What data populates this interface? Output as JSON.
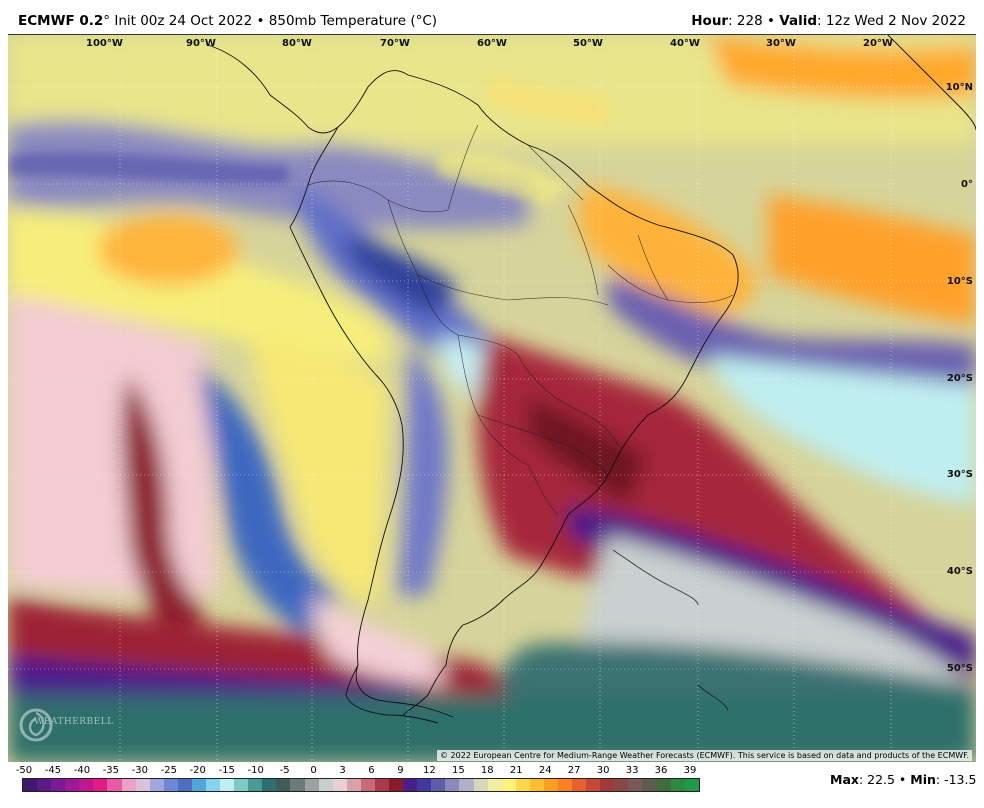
{
  "header": {
    "model": "ECMWF 0.2",
    "degree": "°",
    "init": " Init 00z 24 Oct 2022 • 850mb Temperature (°C)",
    "hour_label": "Hour",
    "hour_value": ": 228 • ",
    "valid_label": "Valid",
    "valid_value": ": 12z Wed 2 Nov 2022"
  },
  "map": {
    "lon_labels": [
      "100°W",
      "90°W",
      "80°W",
      "70°W",
      "60°W",
      "50°W",
      "40°W",
      "30°W",
      "20°W"
    ],
    "lat_labels": [
      "10°N",
      "0°",
      "10°S",
      "20°S",
      "30°S",
      "40°S",
      "50°S"
    ],
    "logo_text": "WEATHERBELL",
    "copyright": "© 2022 European Centre for Medium-Range Weather Forecasts (ECMWF). This service is based on data and products of the ECMWF."
  },
  "legend": {
    "ticks": [
      "-50",
      "-45",
      "-40",
      "-35",
      "-30",
      "-25",
      "-20",
      "-15",
      "-10",
      "-5",
      "0",
      "3",
      "6",
      "9",
      "12",
      "15",
      "18",
      "21",
      "24",
      "27",
      "30",
      "33",
      "36",
      "39"
    ],
    "colors": [
      "#3d1a6e",
      "#5b1a86",
      "#7b1a94",
      "#9c1a98",
      "#c0198f",
      "#e21c84",
      "#e85aa3",
      "#eda0c5",
      "#d9c2e0",
      "#9fa7dd",
      "#6f88d6",
      "#4e6fc0",
      "#52a5d8",
      "#87d2ec",
      "#bfeef3",
      "#7dc9c3",
      "#4a9b98",
      "#2e6f70",
      "#3f5c5a",
      "#6b7b7a",
      "#9aa3a2",
      "#c9cfce",
      "#e9d0d4",
      "#dca0a8",
      "#c86a78",
      "#ad3a4c",
      "#8b1a2a",
      "#4a1f8a",
      "#3f3a9c",
      "#5e5ea8",
      "#8a8ab8",
      "#b0b0c6",
      "#d6d6b8",
      "#f0f0a0",
      "#fff17a",
      "#ffd94a",
      "#ffbf30",
      "#ffa020",
      "#ff8020",
      "#e86030",
      "#c84838",
      "#a03a3a",
      "#884848",
      "#7a5a58",
      "#5c5c50",
      "#3f6b3f",
      "#2e8a3e",
      "#1f9a4a"
    ],
    "max_label": "Max",
    "max_value": ": 22.5 • ",
    "min_label": "Min",
    "min_value": ": -13.5"
  },
  "colors": {
    "cold_purple": "#4a1f8a",
    "blue": "#3f6fc0",
    "cyan": "#c6eef3",
    "pink": "#f3c9cf",
    "dark_red": "#8b1a2a",
    "yellow": "#fff07a",
    "orange": "#ffa020",
    "teal": "#2e6f6f",
    "gray": "#c8cfce"
  }
}
